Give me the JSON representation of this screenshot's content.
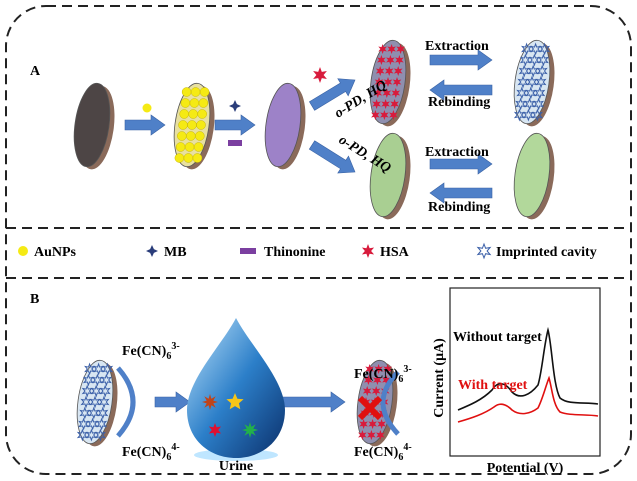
{
  "panel_a": {
    "label": "A",
    "top_route": {
      "reagent": "o-PD, HQ",
      "extraction": "Extraction",
      "rebinding": "Rebinding"
    },
    "bottom_route": {
      "reagent": "o-PD, HQ",
      "extraction": "Extraction",
      "rebinding": "Rebinding"
    }
  },
  "legend": [
    "AuNPs",
    "MB",
    "Thinonine",
    "HSA",
    "Imprinted cavity"
  ],
  "panel_b": {
    "label": "B",
    "left_probe": {
      "oxidized": {
        "base": "Fe(CN)",
        "sub": "6",
        "sup": "3-"
      },
      "reduced": {
        "base": "Fe(CN)",
        "sub": "6",
        "sup": "4-"
      }
    },
    "right_probe": {
      "oxidized": {
        "base": "Fe(CN)",
        "sub": "6",
        "sup": "3-"
      },
      "reduced": {
        "base": "Fe(CN)",
        "sub": "6",
        "sup": "4-"
      }
    },
    "sample": "Urine",
    "plot": {
      "without": "Without target",
      "with": "With target",
      "ylabel": "Current (μA)",
      "xlabel": "Potential (V)"
    }
  }
}
